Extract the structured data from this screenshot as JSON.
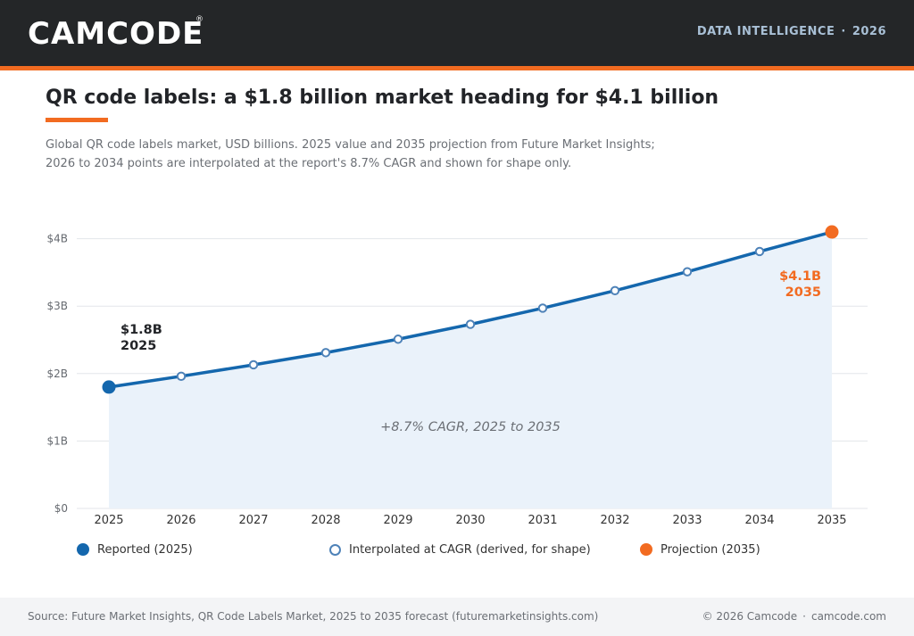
{
  "header": {
    "logo_text": "CAMCODE",
    "logo_mark": "®",
    "section": "DATA INTELLIGENCE",
    "separator": "·",
    "year": "2026"
  },
  "title": "QR code labels: a $1.8 billion market heading for $4.1 billion",
  "subtitle_lines": [
    "Global QR code labels market, USD billions. 2025 value and 2035 projection from Future Market Insights;",
    "2026 to 2034 points are interpolated at the report's 8.7% CAGR and shown for shape only."
  ],
  "chart_data": {
    "type": "line",
    "x": [
      "2025",
      "2026",
      "2027",
      "2028",
      "2029",
      "2030",
      "2031",
      "2032",
      "2033",
      "2034",
      "2035"
    ],
    "series": [
      {
        "values": [
          1.8,
          1.96,
          2.13,
          2.31,
          2.51,
          2.73,
          2.97,
          3.23,
          3.51,
          3.81,
          4.1
        ]
      }
    ],
    "point_kinds": [
      "reported",
      "interpolated",
      "interpolated",
      "interpolated",
      "interpolated",
      "interpolated",
      "interpolated",
      "interpolated",
      "interpolated",
      "interpolated",
      "projection"
    ],
    "ylim": [
      0,
      4.3
    ],
    "yticks": [
      0,
      1,
      2,
      3,
      4
    ],
    "ytick_labels": [
      "$0",
      "$1B",
      "$2B",
      "$3B",
      "$4B"
    ],
    "grid": true,
    "area_fill": true,
    "annotations": {
      "start_value": "$1.8B",
      "start_year": "2025",
      "end_value": "$4.1B",
      "end_year": "2035",
      "cagr": "+8.7% CAGR, 2025 to 2035"
    },
    "legend": [
      {
        "label": "Reported (2025)",
        "kind": "reported"
      },
      {
        "label": "Interpolated at CAGR (derived, for shape)",
        "kind": "interpolated"
      },
      {
        "label": "Projection (2035)",
        "kind": "projection"
      }
    ],
    "legend_position": "bottom",
    "colors": {
      "line": "#1467ad",
      "area": "#eaf2fa",
      "projection": "#f26b21",
      "grid": "#e3e6ea",
      "interp_stroke": "#4e82b8"
    }
  },
  "footer": {
    "source": "Source: Future Market Insights, QR Code Labels Market, 2025 to 2035 forecast (futuremarketinsights.com)",
    "copyright": "© 2026 Camcode",
    "separator": "·",
    "site": "camcode.com"
  }
}
